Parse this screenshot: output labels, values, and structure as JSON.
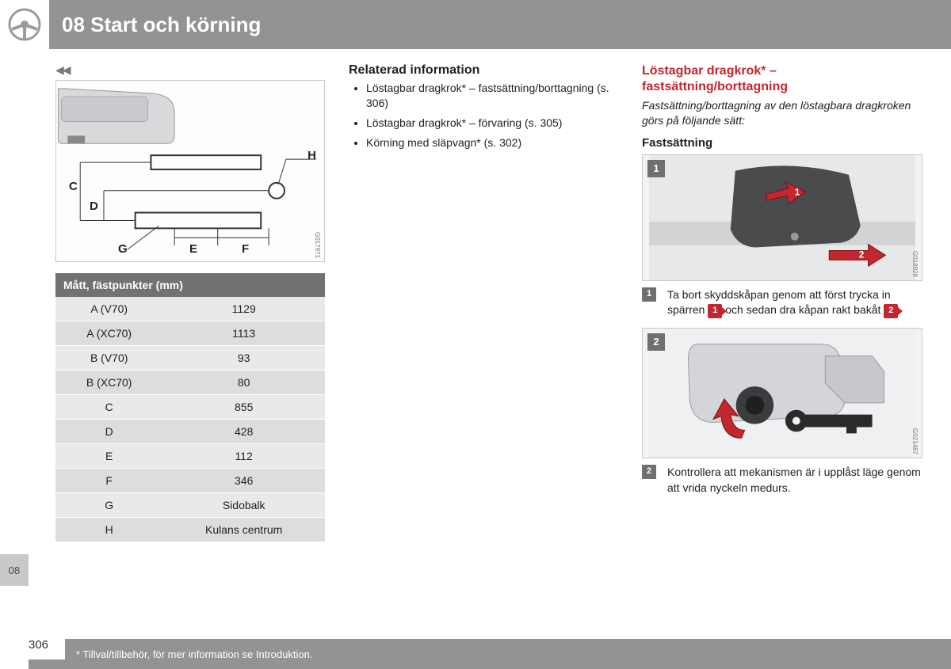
{
  "header": {
    "title": "08 Start och körning"
  },
  "sideTab": "08",
  "continued": "◀◀",
  "diagram": {
    "labels": {
      "C": "C",
      "D": "D",
      "E": "E",
      "F": "F",
      "G": "G",
      "H": "H"
    },
    "code": "G017971"
  },
  "table": {
    "header": "Mått, fästpunkter (mm)",
    "rows": [
      [
        "A (V70)",
        "1129"
      ],
      [
        "A (XC70)",
        "1113"
      ],
      [
        "B (V70)",
        "93"
      ],
      [
        "B (XC70)",
        "80"
      ],
      [
        "C",
        "855"
      ],
      [
        "D",
        "428"
      ],
      [
        "E",
        "112"
      ],
      [
        "F",
        "346"
      ],
      [
        "G",
        "Sidobalk"
      ],
      [
        "H",
        "Kulans centrum"
      ]
    ]
  },
  "related": {
    "title": "Relaterad information",
    "items": [
      "Löstagbar dragkrok* – fastsättning/borttagning (s. 306)",
      "Löstagbar dragkrok* – förvaring (s. 305)",
      "Körning med släpvagn* (s. 302)"
    ]
  },
  "rightCol": {
    "title": "Löstagbar dragkrok* – fastsättning/borttagning",
    "intro": "Fastsättning/borttagning av den löstagbara dragkroken görs på följande sätt:",
    "sub": "Fastsättning",
    "photo1": {
      "badge": "1",
      "code": "G018928"
    },
    "step1_pre": "Ta bort skyddskåpan genom att först trycka in spärren ",
    "step1_mid": " och sedan dra kåpan rakt bakåt ",
    "step1_post": ".",
    "b1": "1",
    "b2": "2",
    "photo2": {
      "badge": "2",
      "code": "G021487"
    },
    "step2": "Kontrollera att mekanismen är i upplåst läge genom att vrida nyckeln medurs."
  },
  "footer": {
    "page": "306",
    "note": "* Tillval/tillbehör, för mer information se Introduktion."
  },
  "colors": {
    "headerBg": "#919395",
    "accentRed": "#c1272d",
    "tableHeader": "#707274",
    "rowOdd": "#e9e9ea",
    "rowEven": "#dcdddf"
  }
}
